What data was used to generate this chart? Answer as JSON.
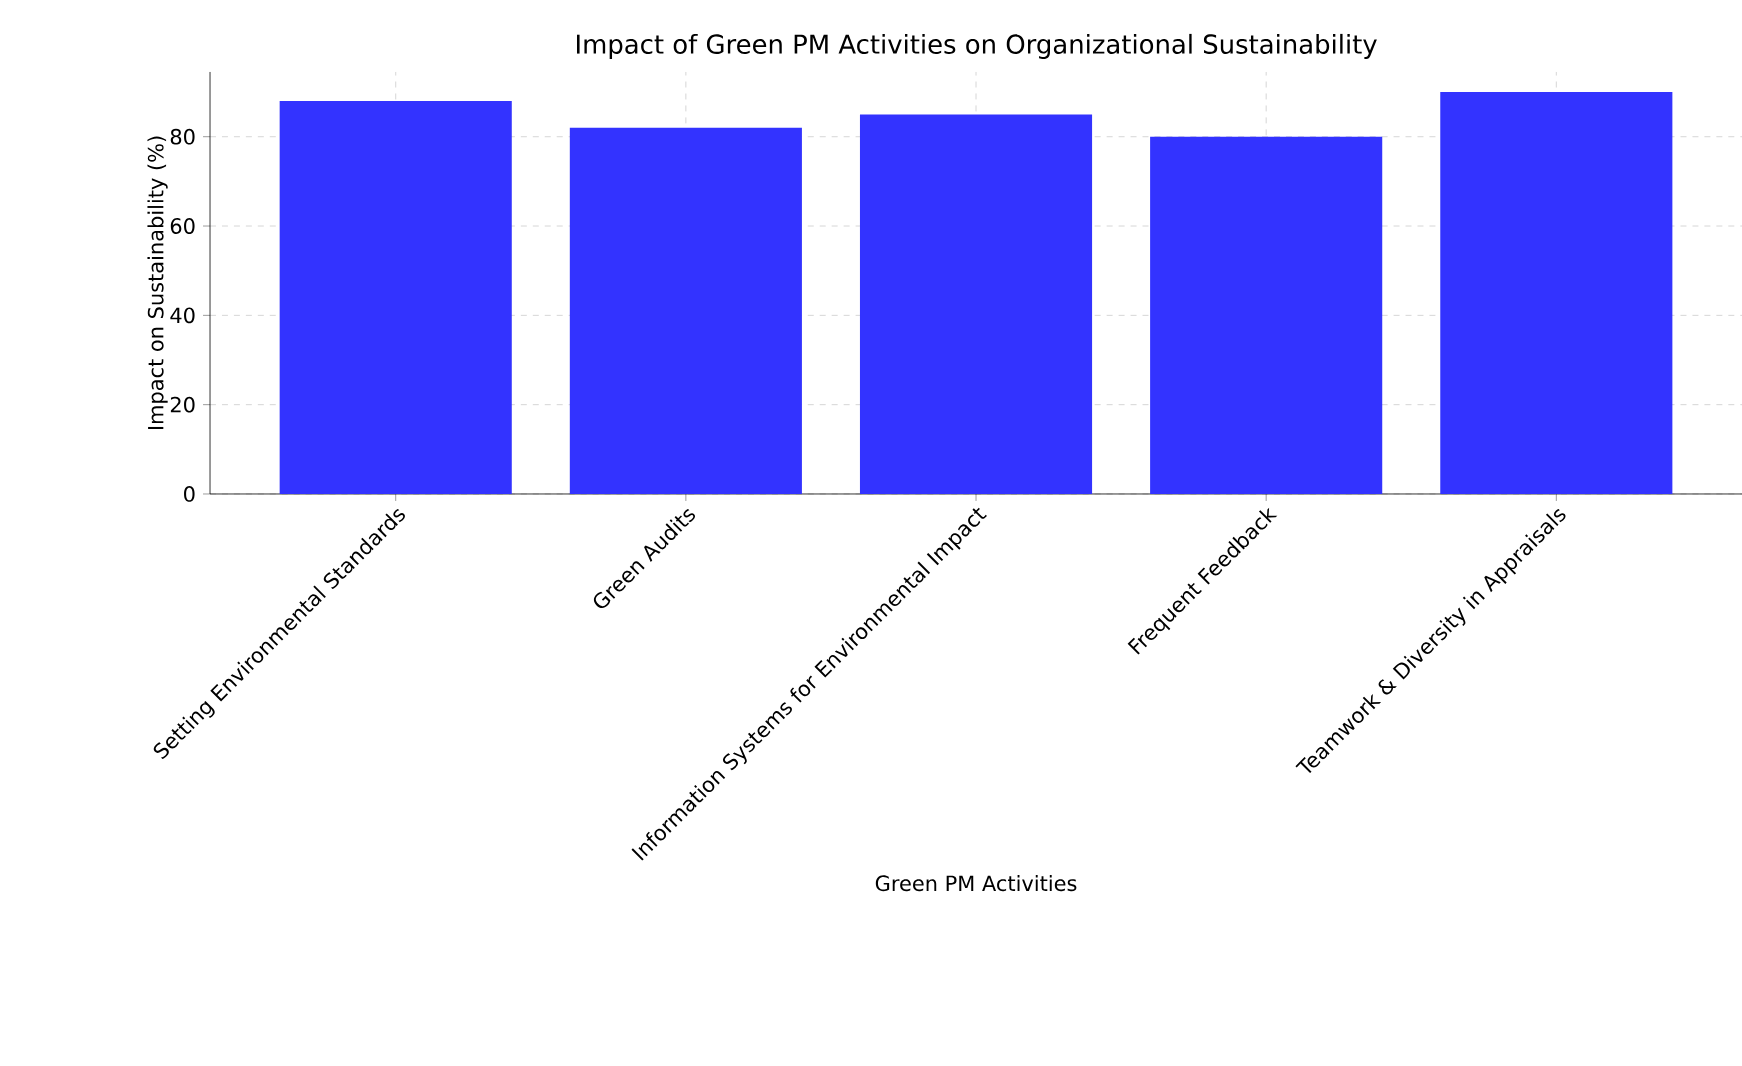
{
  "chart_data": {
    "type": "bar",
    "title": "Impact of Green PM Activities on Organizational Sustainability",
    "xlabel": "Green PM Activities",
    "ylabel": "Impact on Sustainability (%)",
    "categories": [
      "Setting Environmental Standards",
      "Green Audits",
      "Information Systems for Environmental Impact",
      "Frequent Feedback",
      "Teamwork & Diversity in Appraisals"
    ],
    "values": [
      88,
      82,
      85,
      80,
      90
    ],
    "color": "#3333ff",
    "ylim": [
      0,
      94.5
    ],
    "yticks": [
      0,
      20,
      40,
      60,
      80
    ],
    "grid": true
  }
}
